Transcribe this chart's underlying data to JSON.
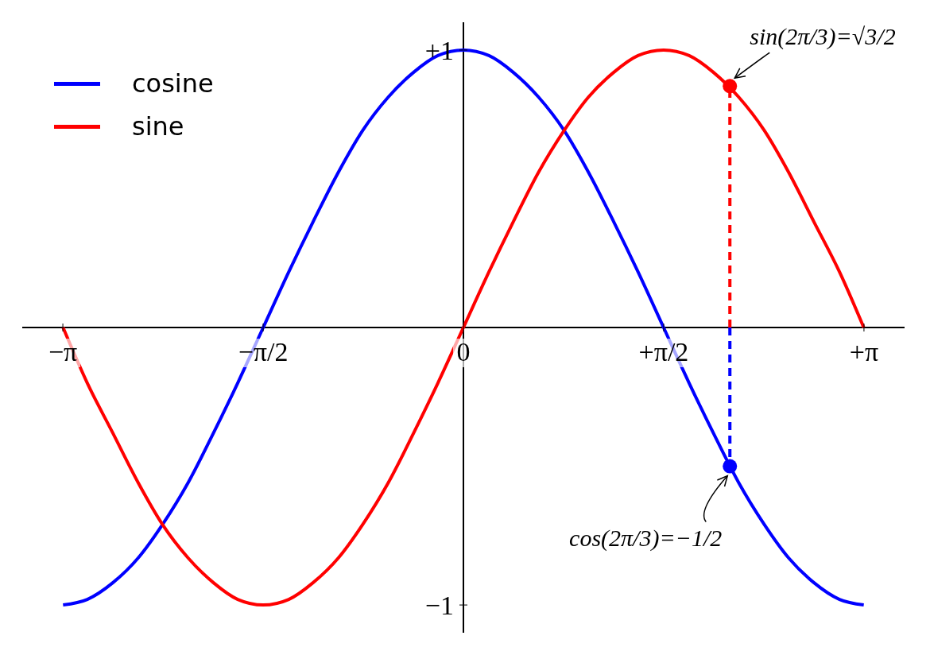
{
  "chart_data": {
    "type": "line",
    "xlim": [
      -3.46,
      3.46
    ],
    "ylim": [
      -1.1,
      1.1
    ],
    "xticks": [
      {
        "value": -3.1416,
        "label": "−π"
      },
      {
        "value": -1.5708,
        "label": "−π/2"
      },
      {
        "value": 0,
        "label": "0"
      },
      {
        "value": 1.5708,
        "label": "+π/2"
      },
      {
        "value": 3.1416,
        "label": "+π"
      }
    ],
    "yticks": [
      {
        "value": -1,
        "label": "−1"
      },
      {
        "value": 1,
        "label": "+1"
      }
    ],
    "legend": "top left",
    "marker": "none",
    "series": [
      {
        "name": "cosine",
        "color": "#0000ff",
        "x": [
          -3.14,
          -2.95,
          -2.75,
          -2.55,
          -2.36,
          -2.16,
          -1.96,
          -1.77,
          -1.57,
          -1.37,
          -1.18,
          -0.98,
          -0.79,
          -0.59,
          -0.39,
          -0.2,
          0,
          0.2,
          0.39,
          0.59,
          0.79,
          0.98,
          1.18,
          1.37,
          1.57,
          1.77,
          1.96,
          2.16,
          2.36,
          2.55,
          2.75,
          2.95,
          3.14
        ],
        "values": [
          -1,
          -0.98,
          -0.92,
          -0.83,
          -0.71,
          -0.56,
          -0.38,
          -0.2,
          0,
          0.2,
          0.38,
          0.56,
          0.71,
          0.83,
          0.92,
          0.98,
          1,
          0.98,
          0.92,
          0.83,
          0.71,
          0.56,
          0.38,
          0.2,
          0,
          -0.2,
          -0.38,
          -0.56,
          -0.71,
          -0.83,
          -0.92,
          -0.98,
          -1
        ]
      },
      {
        "name": "sine",
        "color": "#ff0000",
        "x": [
          -3.14,
          -2.95,
          -2.75,
          -2.55,
          -2.36,
          -2.16,
          -1.96,
          -1.77,
          -1.57,
          -1.37,
          -1.18,
          -0.98,
          -0.79,
          -0.59,
          -0.39,
          -0.2,
          0,
          0.2,
          0.39,
          0.59,
          0.79,
          0.98,
          1.18,
          1.37,
          1.57,
          1.77,
          1.96,
          2.16,
          2.36,
          2.55,
          2.75,
          2.95,
          3.14
        ],
        "values": [
          0,
          -0.2,
          -0.38,
          -0.56,
          -0.71,
          -0.83,
          -0.92,
          -0.98,
          -1,
          -0.98,
          -0.92,
          -0.83,
          -0.71,
          -0.56,
          -0.38,
          -0.2,
          0,
          0.2,
          0.38,
          0.56,
          0.71,
          0.83,
          0.92,
          0.98,
          1,
          0.98,
          0.92,
          0.83,
          0.71,
          0.56,
          0.38,
          0.2,
          0
        ]
      },
      {
        "type": "line",
        "color": "#ff0000",
        "line_style": "dashed",
        "x": [
          2.09,
          2.09
        ],
        "values": [
          0,
          0.87
        ]
      },
      {
        "type": "line",
        "color": "#0000ff",
        "line_style": "dashed",
        "x": [
          2.09,
          2.09
        ],
        "values": [
          0,
          -0.5
        ]
      },
      {
        "type": "scatter",
        "color": "#ff0000",
        "marker": "circle",
        "x": [
          2.09
        ],
        "values": [
          0.87
        ]
      },
      {
        "type": "scatter",
        "color": "#0000ff",
        "marker": "circle",
        "x": [
          2.09
        ],
        "values": [
          -0.5
        ]
      }
    ],
    "annotations": [
      {
        "text": "sin(2π/3)=√3/2",
        "x": 2.09,
        "y": 0.87
      },
      {
        "text": "cos(2π/3)=−1/2",
        "x": 2.09,
        "y": -0.5
      }
    ]
  }
}
